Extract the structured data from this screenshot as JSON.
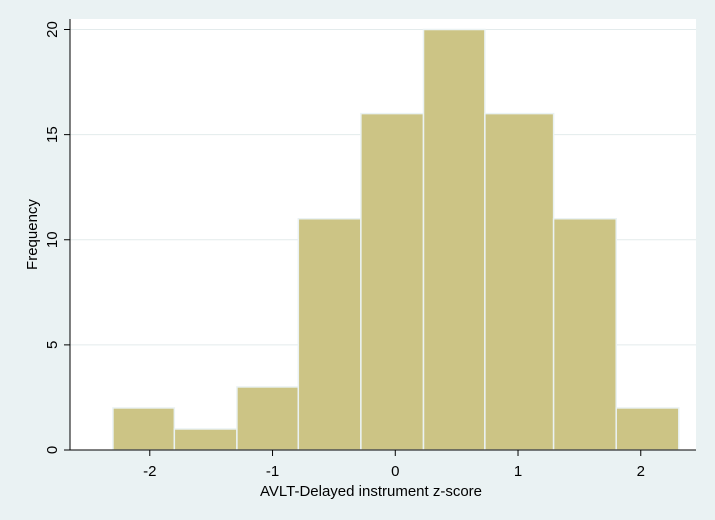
{
  "chart_data": {
    "type": "bar",
    "subtype": "histogram",
    "title": "",
    "xlabel": "AVLT-Delayed instrument z-score",
    "ylabel": "Frequency",
    "bin_edges": [
      -2.3,
      -1.8,
      -1.29,
      -0.79,
      -0.28,
      0.23,
      0.73,
      1.29,
      1.8,
      2.31
    ],
    "values": [
      2,
      1,
      3,
      11,
      16,
      20,
      16,
      11,
      2
    ],
    "xlim": [
      -2.65,
      2.45
    ],
    "ylim": [
      0,
      20.5
    ],
    "xticks": [
      -2,
      -1,
      0,
      1,
      2
    ],
    "xtick_labels": [
      "-2",
      "-1",
      "0",
      "1",
      "2"
    ],
    "yticks": [
      0,
      5,
      10,
      15,
      20
    ],
    "ytick_labels": [
      "0",
      "5",
      "10",
      "15",
      "20"
    ],
    "grid": "horizontal",
    "legend": "none",
    "colors": {
      "bar_fill": "#ccc485",
      "bar_stroke": "#eaf2f3",
      "plot_background": "#ffffff",
      "page_background": "#eaf2f3",
      "grid": "#e3ebec",
      "axis": "#000000"
    }
  }
}
